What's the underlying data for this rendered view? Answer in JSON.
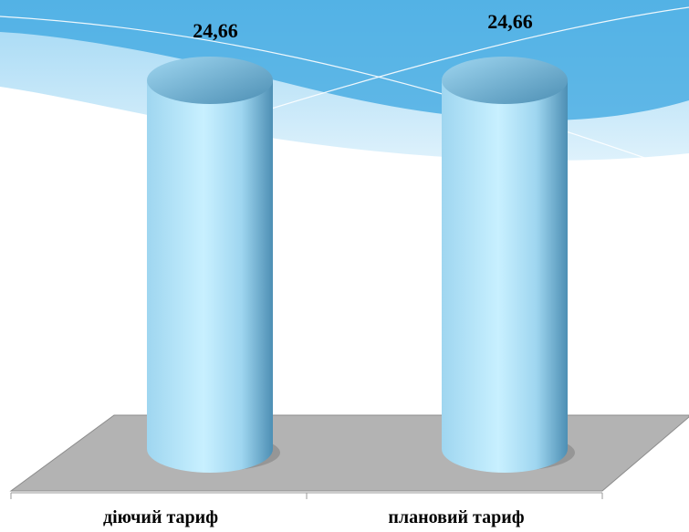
{
  "colors": {
    "wave_light": "#8fd0f2",
    "wave_dark": "#3aa6e0",
    "floor": "#b3b3b3",
    "bar_light": "#c8f0ff",
    "bar_mid": "#9fd6f0",
    "bar_dark": "#4d8fb4",
    "axis": "#999999"
  },
  "chart_data": {
    "type": "bar",
    "style": "3d-cylinder",
    "categories": [
      "діючий тариф",
      "плановий тариф"
    ],
    "values": [
      24.66,
      24.66
    ],
    "value_labels": [
      "24,66",
      "24,66"
    ],
    "title": "",
    "xlabel": "",
    "ylabel": "",
    "ylim": [
      0,
      24.66
    ],
    "grid": false,
    "legend": "none"
  }
}
